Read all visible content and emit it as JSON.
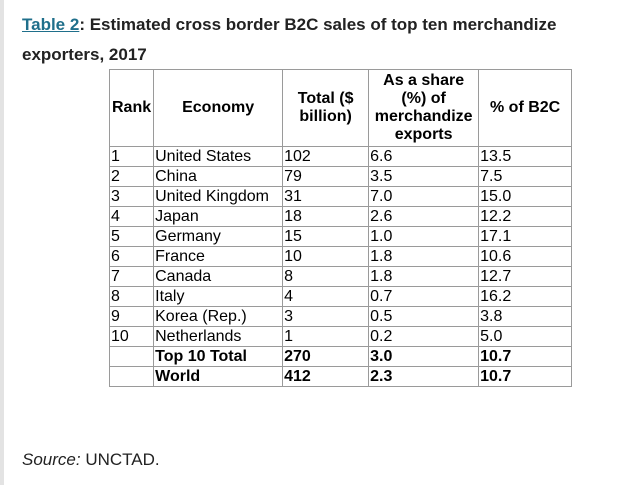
{
  "caption": {
    "link_text": "Table 2",
    "title_text": ": Estimated cross border B2C sales of top ten merchandize exporters, 2017"
  },
  "table": {
    "headers": [
      "Rank",
      "Economy",
      "Total ($ billion)",
      "As a share (%) of merchandize exports",
      "% of B2C"
    ],
    "rows": [
      [
        "1",
        "United States",
        "102",
        "6.6",
        "13.5"
      ],
      [
        "2",
        "China",
        "79",
        "3.5",
        "7.5"
      ],
      [
        "3",
        "United Kingdom",
        "31",
        "7.0",
        "15.0"
      ],
      [
        "4",
        "Japan",
        "18",
        "2.6",
        "12.2"
      ],
      [
        "5",
        "Germany",
        "15",
        "1.0",
        "17.1"
      ],
      [
        "6",
        "France",
        "10",
        "1.8",
        "10.6"
      ],
      [
        "7",
        "Canada",
        "8",
        "1.8",
        "12.7"
      ],
      [
        "8",
        "Italy",
        "4",
        "0.7",
        "16.2"
      ],
      [
        "9",
        "Korea (Rep.)",
        "3",
        "0.5",
        "3.8"
      ],
      [
        "10",
        "Netherlands",
        "1",
        "0.2",
        "5.0"
      ]
    ],
    "totals": [
      [
        "",
        "Top 10 Total",
        "270",
        "3.0",
        "10.7"
      ],
      [
        "",
        "World",
        "412",
        "2.3",
        "10.7"
      ]
    ]
  },
  "source": {
    "label": "Source:",
    "value": " UNCTAD."
  },
  "colors": {
    "link": "#1f6f8b",
    "text": "#222222",
    "grid": "#9a9a9a"
  }
}
